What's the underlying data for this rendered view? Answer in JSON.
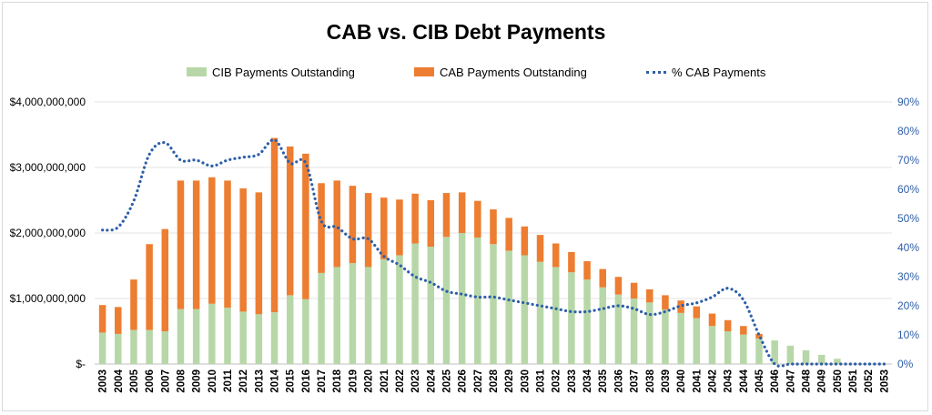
{
  "chart_data": {
    "type": "bar",
    "title": "CAB vs. CIB Debt Payments",
    "stacked": true,
    "categories": [
      "2003",
      "2004",
      "2005",
      "2006",
      "2007",
      "2008",
      "2009",
      "2010",
      "2011",
      "2012",
      "2013",
      "2014",
      "2015",
      "2016",
      "2017",
      "2018",
      "2019",
      "2020",
      "2021",
      "2022",
      "2023",
      "2024",
      "2025",
      "2026",
      "2027",
      "2028",
      "2029",
      "2030",
      "2031",
      "2032",
      "2033",
      "2034",
      "2035",
      "2036",
      "2037",
      "2038",
      "2039",
      "2040",
      "2041",
      "2042",
      "2043",
      "2044",
      "2045",
      "2046",
      "2047",
      "2048",
      "2049",
      "2050",
      "2051",
      "2052",
      "2053"
    ],
    "series": [
      {
        "name": "CIB Payments Outstanding",
        "axis": "left",
        "kind": "bar",
        "color": "#b7d7a8",
        "values": [
          480000000,
          460000000,
          520000000,
          520000000,
          500000000,
          840000000,
          840000000,
          920000000,
          860000000,
          800000000,
          760000000,
          790000000,
          1050000000,
          990000000,
          1390000000,
          1480000000,
          1540000000,
          1480000000,
          1600000000,
          1660000000,
          1840000000,
          1790000000,
          1940000000,
          2000000000,
          1930000000,
          1830000000,
          1730000000,
          1660000000,
          1560000000,
          1480000000,
          1400000000,
          1290000000,
          1170000000,
          1060000000,
          1000000000,
          940000000,
          830000000,
          780000000,
          700000000,
          580000000,
          500000000,
          450000000,
          390000000,
          360000000,
          280000000,
          210000000,
          140000000,
          80000000,
          0,
          0,
          0
        ]
      },
      {
        "name": "CAB Payments Outstanding",
        "axis": "left",
        "kind": "bar",
        "color": "#ed7d31",
        "values": [
          420000000,
          410000000,
          770000000,
          1310000000,
          1560000000,
          1960000000,
          1960000000,
          1930000000,
          1940000000,
          1880000000,
          1860000000,
          2660000000,
          2270000000,
          2220000000,
          1370000000,
          1320000000,
          1180000000,
          1130000000,
          940000000,
          850000000,
          760000000,
          710000000,
          670000000,
          620000000,
          560000000,
          530000000,
          500000000,
          440000000,
          410000000,
          360000000,
          310000000,
          280000000,
          280000000,
          270000000,
          240000000,
          200000000,
          220000000,
          190000000,
          180000000,
          190000000,
          170000000,
          130000000,
          70000000,
          0,
          0,
          0,
          0,
          0,
          0,
          0,
          0
        ]
      },
      {
        "name": "% CAB Payments",
        "axis": "right",
        "kind": "line",
        "color": "#2e5fa8",
        "values": [
          0.46,
          0.47,
          0.56,
          0.72,
          0.76,
          0.7,
          0.7,
          0.68,
          0.7,
          0.71,
          0.72,
          0.77,
          0.69,
          0.69,
          0.49,
          0.47,
          0.43,
          0.43,
          0.37,
          0.34,
          0.3,
          0.28,
          0.25,
          0.24,
          0.23,
          0.23,
          0.22,
          0.21,
          0.2,
          0.19,
          0.18,
          0.18,
          0.19,
          0.2,
          0.19,
          0.17,
          0.18,
          0.2,
          0.21,
          0.23,
          0.26,
          0.22,
          0.1,
          0.0,
          0.0,
          0.0,
          0.0,
          0.0,
          0.0,
          0.0,
          0.0
        ]
      }
    ],
    "y_left": {
      "min": 0,
      "max": 4000000000,
      "ticks": [
        "$-",
        "$1,000,000,000",
        "$2,000,000,000",
        "$3,000,000,000",
        "$4,000,000,000"
      ]
    },
    "y_right": {
      "min": 0,
      "max": 0.9,
      "ticks": [
        "0%",
        "10%",
        "20%",
        "30%",
        "40%",
        "50%",
        "60%",
        "70%",
        "80%",
        "90%"
      ]
    },
    "gridlines": true,
    "legend_position": "top"
  },
  "legend": {
    "cib": "CIB Payments Outstanding",
    "cab": "CAB Payments Outstanding",
    "pct": "% CAB Payments"
  }
}
